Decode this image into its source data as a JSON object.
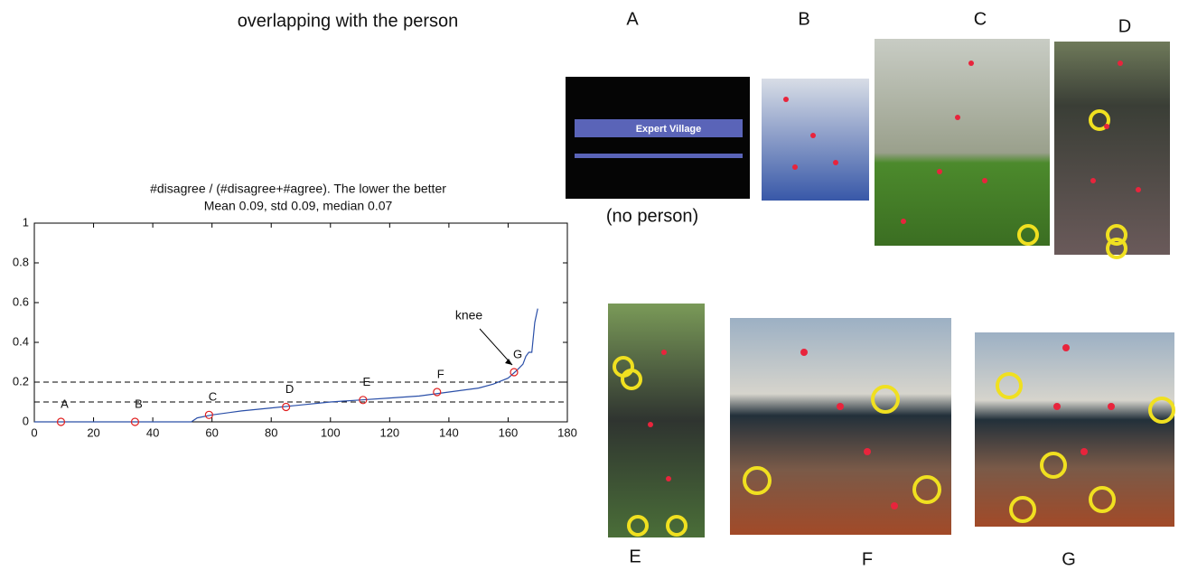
{
  "heading": "overlapping with the person",
  "chart_data": {
    "type": "line",
    "title": "#disagree / (#disagree+#agree). The lower the better",
    "subtitle": "Mean 0.09, std 0.09, median 0.07",
    "xlim": [
      0,
      180
    ],
    "xticks": [
      0,
      20,
      40,
      60,
      80,
      100,
      120,
      140,
      160,
      180
    ],
    "ylim": [
      0,
      1
    ],
    "yticks": [
      0,
      0.2,
      0.4,
      0.6,
      0.8,
      1
    ],
    "reference_lines": [
      0.1,
      0.2
    ],
    "series": [
      {
        "color": "#2a4fa8",
        "x": [
          0,
          53,
          55,
          60,
          70,
          80,
          90,
          100,
          110,
          120,
          130,
          140,
          150,
          155,
          160,
          163,
          165,
          166,
          167,
          168,
          169,
          170
        ],
        "values": [
          0,
          0,
          0.02,
          0.035,
          0.055,
          0.07,
          0.085,
          0.1,
          0.11,
          0.12,
          0.13,
          0.15,
          0.17,
          0.19,
          0.22,
          0.26,
          0.29,
          0.33,
          0.35,
          0.35,
          0.5,
          0.57
        ]
      }
    ],
    "points": {
      "color": "#e02020",
      "labels": [
        "A",
        "B",
        "C",
        "D",
        "E",
        "F",
        "G"
      ],
      "x": [
        9,
        34,
        59,
        85,
        111,
        136,
        162
      ],
      "values": [
        0,
        0,
        0.035,
        0.075,
        0.11,
        0.15,
        0.25
      ]
    },
    "annotation": "knee"
  },
  "panels": {
    "labels": [
      "A",
      "B",
      "C",
      "D",
      "E",
      "F",
      "G"
    ],
    "no_person_note": "(no person)",
    "watermark": "Expert Village"
  }
}
